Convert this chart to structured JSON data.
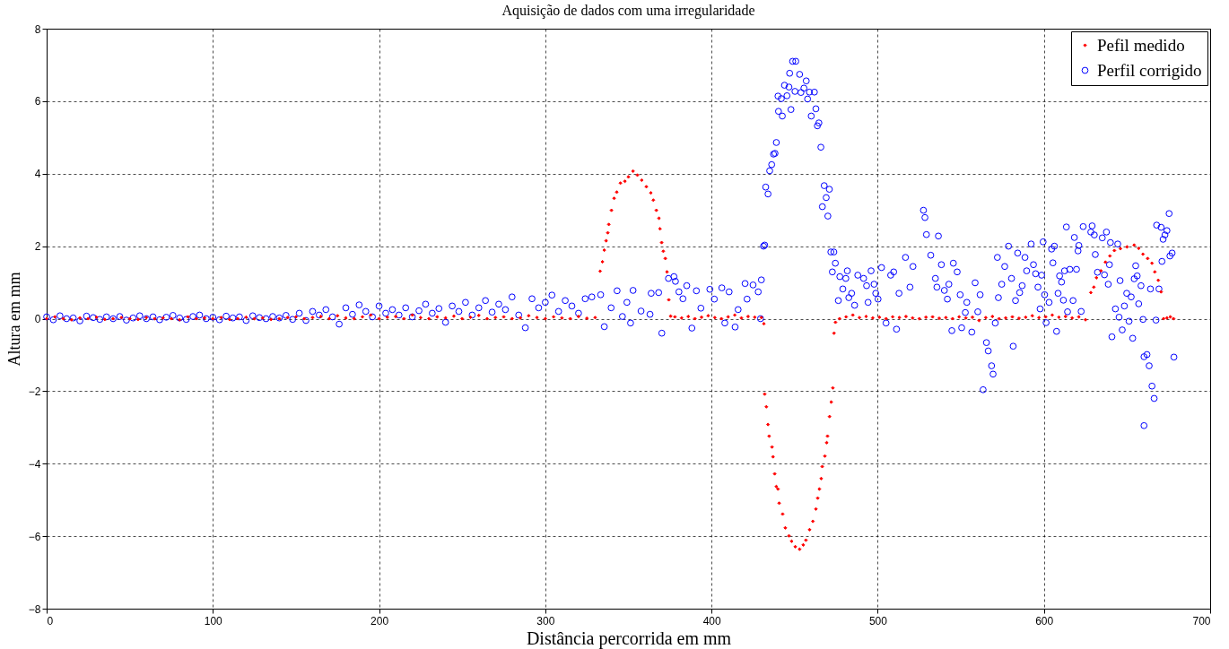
{
  "chart_data": {
    "type": "scatter",
    "title": "Aquisição de dados com uma irregularidade",
    "xlabel": "Distância percorrida em mm",
    "ylabel": "Altura em mm",
    "xlim": [
      0,
      700
    ],
    "ylim": [
      -8,
      8
    ],
    "xticks": [
      0,
      100,
      200,
      300,
      400,
      500,
      600,
      700
    ],
    "yticks": [
      -8,
      -6,
      -4,
      -2,
      0,
      2,
      4,
      6,
      8
    ],
    "grid": true,
    "legend": "top right",
    "series": [
      {
        "name": "Pefil medido",
        "color": "#ff0000",
        "marker": "diamond",
        "x": [
          0,
          5,
          10,
          15,
          20,
          25,
          30,
          35,
          40,
          45,
          50,
          55,
          60,
          65,
          70,
          75,
          80,
          85,
          90,
          95,
          100,
          105,
          110,
          115,
          120,
          125,
          130,
          135,
          140,
          145,
          150,
          155,
          160,
          165,
          170,
          175,
          180,
          185,
          190,
          195,
          200,
          205,
          210,
          215,
          220,
          225,
          230,
          235,
          240,
          245,
          250,
          255,
          260,
          265,
          270,
          275,
          280,
          285,
          290,
          295,
          300,
          305,
          310,
          315,
          320,
          325,
          330,
          333,
          334.4,
          335.5,
          336.6,
          337.6,
          338.2,
          339.8,
          341.4,
          343,
          345.2,
          347.9,
          350,
          352.8,
          355.4,
          358,
          360.8,
          363.5,
          365,
          366.8,
          368.4,
          369,
          370,
          371,
          372.2,
          373.2,
          374.3,
          375.4,
          378,
          382,
          386,
          390,
          394,
          398,
          402,
          406,
          410,
          414,
          418,
          422,
          426,
          430,
          431.5,
          432,
          433,
          434,
          434.7,
          436.4,
          437,
          438,
          439,
          440,
          440.7,
          442.8,
          444.4,
          446.6,
          448.2,
          450.4,
          453,
          455.2,
          456.8,
          459,
          461,
          462.8,
          463.9,
          464.9,
          466,
          466.6,
          468.2,
          469.3,
          469.8,
          471,
          472,
          473,
          473.7,
          474.6,
          477,
          481,
          485,
          489,
          493,
          497,
          501,
          505,
          509,
          513,
          517,
          521,
          525,
          529,
          533,
          537,
          541,
          545,
          549,
          553,
          557,
          561,
          565,
          569,
          573,
          577,
          581,
          585,
          589,
          593,
          597,
          601,
          605,
          609,
          613,
          617,
          621,
          625,
          628.2,
          630,
          631.6,
          634.3,
          637,
          639.7,
          642.4,
          646,
          650,
          654.3,
          657,
          659.6,
          662.4,
          665,
          666.7,
          668.8,
          670.5,
          672,
          674,
          676,
          678
        ],
        "values": [
          0,
          0.05,
          0,
          -0.03,
          0.02,
          0,
          0.04,
          -0.02,
          0,
          0.03,
          0,
          -0.02,
          0.03,
          0,
          0.02,
          0,
          -0.03,
          0.05,
          0,
          0.02,
          0,
          0.03,
          -0.02,
          0,
          0.04,
          0,
          0.02,
          -0.02,
          0,
          0.03,
          0.05,
          0,
          0.03,
          0.06,
          0,
          0.08,
          0.02,
          0,
          0.05,
          0.1,
          0,
          0.04,
          0.06,
          0,
          0.1,
          0.03,
          0,
          0.05,
          0.02,
          0.07,
          0,
          0.04,
          0.09,
          0,
          0.03,
          0.05,
          0,
          0.02,
          0.08,
          0.03,
          0,
          0.05,
          0.02,
          0,
          0.06,
          0.01,
          0.03,
          1.31,
          1.57,
          1.89,
          2.15,
          2.37,
          2.6,
          2.99,
          3.32,
          3.49,
          3.74,
          3.79,
          3.91,
          4.07,
          3.96,
          3.82,
          3.64,
          3.47,
          3.27,
          2.99,
          2.77,
          2.48,
          2.1,
          1.86,
          1.66,
          1.29,
          0.52,
          0.07,
          0.05,
          0.02,
          0.06,
          0,
          0.04,
          0.08,
          0.03,
          0,
          0.05,
          0.1,
          0.02,
          0.06,
          0.04,
          0.03,
          -0.14,
          -2.08,
          -2.43,
          -2.92,
          -3.24,
          -3.54,
          -3.81,
          -4.28,
          -4.63,
          -4.7,
          -5.09,
          -5.39,
          -5.77,
          -5.99,
          -6.14,
          -6.29,
          -6.36,
          -6.24,
          -6.11,
          -5.82,
          -5.59,
          -5.25,
          -4.95,
          -4.7,
          -4.41,
          -4.08,
          -3.79,
          -3.42,
          -3.24,
          -2.7,
          -2.3,
          -1.91,
          -0.4,
          -0.1,
          0,
          0.05,
          0.1,
          0.03,
          0.06,
          0.02,
          0.04,
          0,
          0.05,
          0.03,
          0.06,
          0.02,
          0,
          0.04,
          0.05,
          0.01,
          0.03,
          0,
          0.05,
          0.02,
          0.04,
          -0.05,
          0.03,
          0.06,
          0,
          0.02,
          0.05,
          0.01,
          0.04,
          0.08,
          0.03,
          0.05,
          0.1,
          0.04,
          0.06,
          0.02,
          0.05,
          -0.03,
          0.72,
          0.87,
          1.13,
          1.32,
          1.56,
          1.73,
          1.88,
          1.93,
          1.98,
          2.03,
          1.94,
          1.78,
          1.66,
          1.53,
          1.29,
          1.06,
          0.74,
          0,
          0.02,
          0.05,
          0
        ]
      },
      {
        "name": "Perfil corrigido",
        "color": "#0000ff",
        "marker": "circle",
        "x": [
          0,
          4,
          8,
          12,
          16,
          20,
          24,
          28,
          32,
          36,
          40,
          44,
          48,
          52,
          56,
          60,
          64,
          68,
          72,
          76,
          80,
          84,
          88,
          92,
          96,
          100,
          104,
          108,
          112,
          116,
          120,
          124,
          128,
          132,
          136,
          140,
          144,
          148,
          152,
          156,
          160,
          164,
          168,
          172,
          176,
          180,
          184,
          188,
          192,
          196,
          200,
          204,
          208,
          212,
          216,
          220,
          224,
          228,
          232,
          236,
          240,
          244,
          248,
          252,
          256,
          260,
          264,
          268,
          272,
          276,
          280,
          284,
          288,
          292,
          296,
          300,
          304,
          308,
          312,
          316,
          320,
          324,
          328,
          333.3,
          335.5,
          339.6,
          343.2,
          346.4,
          349.1,
          351.3,
          352.8,
          357.6,
          363,
          363.7,
          368.2,
          370.1,
          374.1,
          377.4,
          378.3,
          380.4,
          382.8,
          385.1,
          388.2,
          390.9,
          393.6,
          399,
          401.7,
          406.2,
          408,
          410.6,
          414.2,
          416,
          420.2,
          421.4,
          425,
          428.1,
          429.5,
          430,
          431.3,
          432,
          432.6,
          434,
          435,
          436.2,
          437.3,
          438.2,
          439,
          440,
          440.3,
          442,
          442.6,
          443.9,
          445.4,
          446.6,
          447,
          447.8,
          448.8,
          450.2,
          450.7,
          453,
          453.8,
          455.6,
          457,
          457.8,
          458.9,
          460,
          461.9,
          462.8,
          463.7,
          464.6,
          465.8,
          466.7,
          467.8,
          469,
          470,
          470.9,
          471.8,
          472.7,
          473.6,
          474.5,
          476.3,
          477.2,
          479,
          480.8,
          481.7,
          482.6,
          484.3,
          486.1,
          488,
          491.5,
          493.3,
          494.2,
          496,
          497.8,
          498.8,
          500.2,
          502.3,
          505,
          507.8,
          509.6,
          511.3,
          512.8,
          516.7,
          519.4,
          521.2,
          527.5,
          528.4,
          529.3,
          531.9,
          534.7,
          535.6,
          536.5,
          538.3,
          540.1,
          541.9,
          542.8,
          544.6,
          545.5,
          547.8,
          549.6,
          550.5,
          552.7,
          553.6,
          556.6,
          558.6,
          560.2,
          561.6,
          563.4,
          565.4,
          566.5,
          568.5,
          569.4,
          570.7,
          572,
          572.6,
          574.6,
          576.4,
          578.7,
          580.5,
          581.5,
          582.9,
          584.2,
          585.4,
          586.9,
          588.6,
          589.6,
          592.3,
          593.7,
          595,
          596.4,
          597.7,
          598.6,
          599.5,
          600.4,
          601.3,
          603.1,
          604.6,
          605.4,
          606.3,
          607.6,
          608.5,
          609.4,
          610.6,
          611.7,
          612.4,
          613.5,
          614.2,
          615.6,
          617.5,
          618.3,
          619.6,
          620.5,
          621,
          622.4,
          623.6,
          628.2,
          629,
          630.3,
          630.9,
          632.2,
          635.1,
          636.4,
          637.6,
          638.7,
          639.4,
          640,
          640.9,
          643,
          644.4,
          645.2,
          645.8,
          647.1,
          648.4,
          649.8,
          651.2,
          652.5,
          653.4,
          654.3,
          655.2,
          656.1,
          657,
          658.4,
          659.6,
          660.2,
          660.2,
          662,
          663.3,
          664.1,
          665,
          666.3,
          667.4,
          667.8,
          669.2,
          670.5,
          671,
          671.7,
          672.8,
          674,
          675.3,
          675.8,
          677.1,
          678.2
        ],
        "values": [
          0.05,
          -0.03,
          0.08,
          0,
          0.02,
          -0.06,
          0.07,
          0.03,
          -0.02,
          0.05,
          0,
          0.06,
          -0.04,
          0.02,
          0.08,
          0,
          0.05,
          -0.03,
          0.04,
          0.09,
          0.02,
          -0.02,
          0.06,
          0.1,
          0,
          0.04,
          -0.03,
          0.07,
          0.02,
          0.05,
          -0.05,
          0.08,
          0.03,
          0,
          0.06,
          0.02,
          0.09,
          -0.02,
          0.15,
          -0.05,
          0.2,
          0.1,
          0.25,
          0.05,
          -0.15,
          0.3,
          0.12,
          0.38,
          0.2,
          0.05,
          0.35,
          0.15,
          0.25,
          0.1,
          0.3,
          0.05,
          0.22,
          0.4,
          0.15,
          0.28,
          -0.1,
          0.35,
          0.2,
          0.45,
          0.1,
          0.3,
          0.5,
          0.18,
          0.4,
          0.25,
          0.6,
          0.1,
          -0.25,
          0.55,
          0.3,
          0.45,
          0.65,
          0.2,
          0.5,
          0.35,
          0.15,
          0.55,
          0.6,
          0.66,
          -0.22,
          0.3,
          0.77,
          0.06,
          0.45,
          -0.12,
          0.78,
          0.21,
          0.12,
          0.7,
          0.72,
          -0.4,
          1.11,
          1.16,
          1.03,
          0.74,
          0.55,
          0.91,
          -0.26,
          0.77,
          0.29,
          0.81,
          0.54,
          0.85,
          -0.12,
          0.74,
          -0.23,
          0.25,
          0.97,
          0.54,
          0.93,
          0.74,
          0,
          1.07,
          2,
          2.03,
          3.63,
          3.44,
          4.08,
          4.25,
          4.54,
          4.56,
          4.86,
          6.14,
          5.72,
          6.07,
          5.59,
          6.44,
          6.15,
          6.39,
          6.77,
          5.77,
          7.1,
          6.27,
          7.1,
          6.74,
          6.24,
          6.36,
          6.56,
          6.06,
          6.25,
          5.59,
          6.25,
          5.79,
          5.32,
          5.4,
          4.73,
          3.09,
          3.67,
          3.34,
          2.83,
          3.57,
          1.84,
          1.29,
          1.84,
          1.53,
          0.5,
          1.16,
          0.82,
          1.11,
          1.32,
          0.58,
          0.7,
          0.37,
          1.2,
          1.11,
          0.91,
          0.45,
          1.32,
          0.95,
          0.7,
          0.54,
          1.41,
          -0.12,
          1.2,
          1.29,
          -0.29,
          0.7,
          1.69,
          0.87,
          1.44,
          2.99,
          2.79,
          2.32,
          1.75,
          1.11,
          0.87,
          2.28,
          1.49,
          0.78,
          0.54,
          0.95,
          -0.33,
          1.53,
          1.29,
          0.66,
          -0.25,
          0.17,
          0.45,
          -0.37,
          0.99,
          0.19,
          0.66,
          -1.96,
          -0.66,
          -0.89,
          -1.3,
          -1.53,
          -0.12,
          1.69,
          0.58,
          0.95,
          1.44,
          2,
          1.11,
          -0.76,
          0.5,
          1.81,
          0.72,
          0.91,
          1.69,
          1.32,
          2.06,
          1.49,
          1.24,
          0.87,
          0.27,
          1.2,
          2.12,
          0.66,
          -0.11,
          0.45,
          1.92,
          1.54,
          2,
          -0.35,
          0.7,
          1.18,
          1.01,
          0.51,
          1.32,
          2.53,
          0.19,
          1.36,
          0.5,
          2.24,
          1.36,
          1.87,
          2.02,
          0.2,
          2.54,
          2.39,
          2.56,
          2.31,
          1.77,
          1.28,
          2.23,
          1.21,
          2.39,
          0.95,
          1.49,
          2.1,
          -0.5,
          0.27,
          2.06,
          0.04,
          1.05,
          -0.31,
          0.35,
          0.7,
          -0.07,
          0.6,
          -0.54,
          1.1,
          1.46,
          1.18,
          0.41,
          0.91,
          -0.02,
          -1.05,
          -2.95,
          -0.99,
          -1.3,
          0.82,
          -1.86,
          -2.2,
          -0.04,
          2.58,
          0.82,
          2.52,
          1.58,
          2.19,
          2.31,
          2.43,
          2.9,
          1.73,
          1.81,
          -1.06
        ]
      }
    ]
  }
}
